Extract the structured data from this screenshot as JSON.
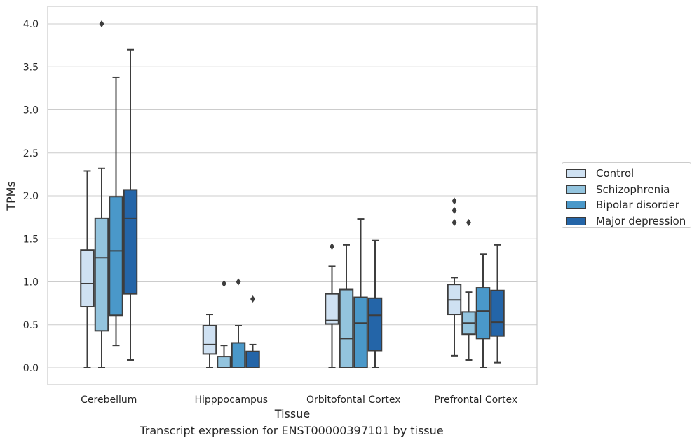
{
  "chart_data": {
    "type": "box",
    "title": "",
    "xlabel": "Tissue",
    "ylabel": "TPMs",
    "ylim": [
      -0.19,
      4.2
    ],
    "yticks": [
      "0.0",
      "0.5",
      "1.0",
      "1.5",
      "2.0",
      "2.5",
      "3.0",
      "3.5",
      "4.0"
    ],
    "grid": true,
    "legend_position": "right",
    "categories": [
      "Cerebellum",
      "Hipppocampus",
      "Orbitofontal Cortex",
      "Prefrontal Cortex"
    ],
    "series": [
      {
        "name": "Control",
        "color": "#cfe1f2",
        "boxes": [
          {
            "min": 0.0,
            "q1": 0.71,
            "median": 0.98,
            "q3": 1.37,
            "max": 2.29,
            "outliers": []
          },
          {
            "min": 0.0,
            "q1": 0.16,
            "median": 0.27,
            "q3": 0.49,
            "max": 0.62,
            "outliers": []
          },
          {
            "min": 0.0,
            "q1": 0.51,
            "median": 0.55,
            "q3": 0.86,
            "max": 1.18,
            "outliers": [
              1.41
            ]
          },
          {
            "min": 0.14,
            "q1": 0.62,
            "median": 0.79,
            "q3": 0.97,
            "max": 1.05,
            "outliers": [
              1.69,
              1.83,
              1.94
            ]
          }
        ]
      },
      {
        "name": "Schizophrenia",
        "color": "#93c4de",
        "boxes": [
          {
            "min": 0.0,
            "q1": 0.43,
            "median": 1.28,
            "q3": 1.74,
            "max": 2.32,
            "outliers": [
              4.0
            ]
          },
          {
            "min": 0.0,
            "q1": 0.0,
            "median": 0.0,
            "q3": 0.13,
            "max": 0.26,
            "outliers": [
              0.98
            ]
          },
          {
            "min": 0.0,
            "q1": 0.0,
            "median": 0.34,
            "q3": 0.91,
            "max": 1.43,
            "outliers": []
          },
          {
            "min": 0.09,
            "q1": 0.39,
            "median": 0.52,
            "q3": 0.65,
            "max": 0.88,
            "outliers": [
              1.69
            ]
          }
        ]
      },
      {
        "name": "Bipolar disorder",
        "color": "#4a98c9",
        "boxes": [
          {
            "min": 0.26,
            "q1": 0.61,
            "median": 1.36,
            "q3": 1.99,
            "max": 3.38,
            "outliers": []
          },
          {
            "min": 0.0,
            "q1": 0.0,
            "median": 0.0,
            "q3": 0.29,
            "max": 0.49,
            "outliers": [
              1.0
            ]
          },
          {
            "min": 0.0,
            "q1": 0.0,
            "median": 0.52,
            "q3": 0.82,
            "max": 1.73,
            "outliers": []
          },
          {
            "min": 0.0,
            "q1": 0.34,
            "median": 0.66,
            "q3": 0.93,
            "max": 1.32,
            "outliers": []
          }
        ]
      },
      {
        "name": "Major depression",
        "color": "#2465a8",
        "boxes": [
          {
            "min": 0.09,
            "q1": 0.86,
            "median": 1.74,
            "q3": 2.07,
            "max": 3.7,
            "outliers": []
          },
          {
            "min": 0.0,
            "q1": 0.0,
            "median": 0.0,
            "q3": 0.19,
            "max": 0.27,
            "outliers": [
              0.8
            ]
          },
          {
            "min": 0.0,
            "q1": 0.2,
            "median": 0.61,
            "q3": 0.81,
            "max": 1.48,
            "outliers": []
          },
          {
            "min": 0.06,
            "q1": 0.37,
            "median": 0.53,
            "q3": 0.9,
            "max": 1.43,
            "outliers": []
          }
        ]
      }
    ]
  },
  "caption": "Transcript expression for ENST00000397101 by tissue"
}
